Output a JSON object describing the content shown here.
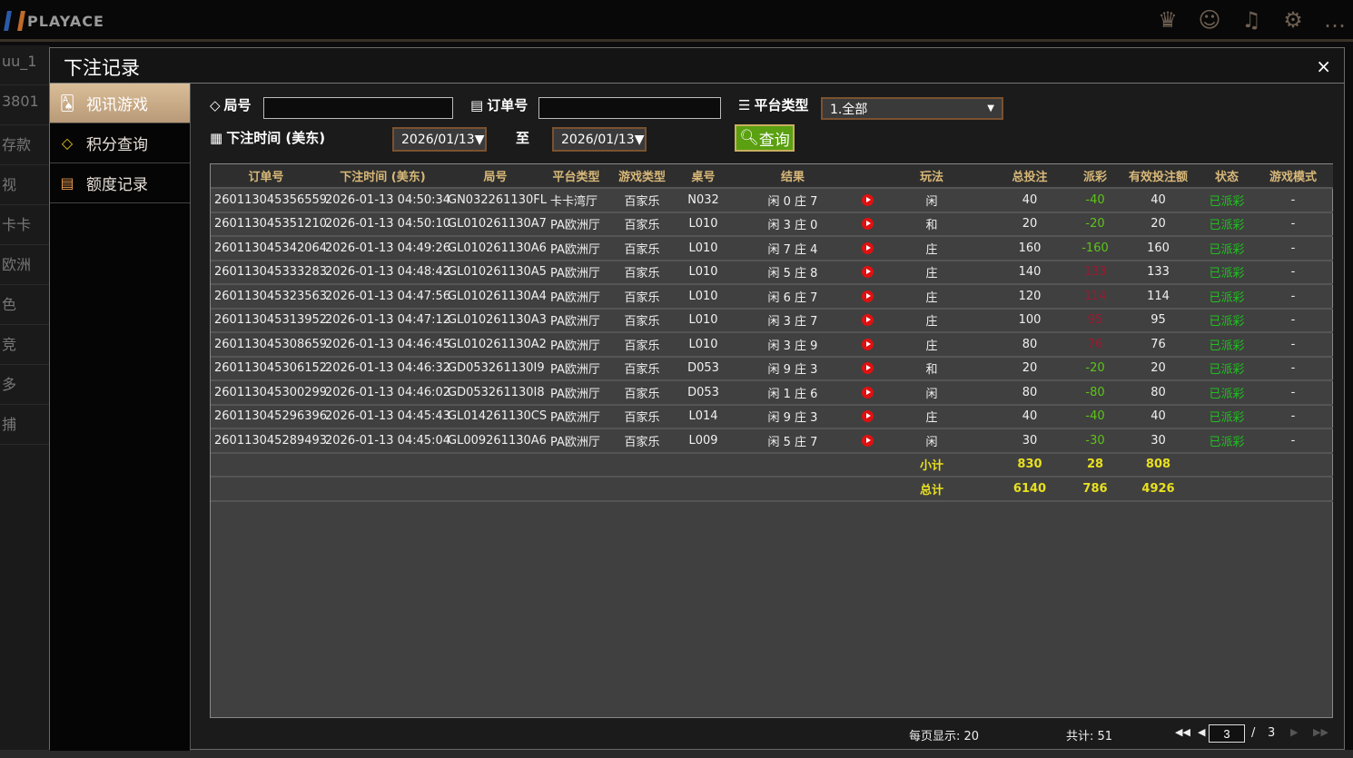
{
  "app": {
    "logo": "PLAYACE",
    "top_icons": [
      "vip-icon",
      "customer-service-icon",
      "music-icon",
      "gear-icon",
      "chat-icon"
    ]
  },
  "background": {
    "left_items": [
      "uu_1",
      "3801",
      "存款",
      "视",
      "卡卡",
      "欧洲",
      "色",
      "竞",
      "多",
      "捕"
    ]
  },
  "modal": {
    "title": "下注记录",
    "close": "×"
  },
  "sidebar": {
    "items": [
      {
        "label": "视讯游戏",
        "icon": "cards-icon",
        "active": true
      },
      {
        "label": "积分查询",
        "icon": "diamond-icon"
      },
      {
        "label": "额度记录",
        "icon": "document-icon"
      }
    ]
  },
  "filters": {
    "round_label": "局号",
    "round_value": "",
    "order_label": "订单号",
    "order_value": "",
    "platform_label": "平台类型",
    "platform_value": "1.全部",
    "time_label": "下注时间 (美东)",
    "date_from": "2026/01/13▼",
    "to_label": "至",
    "date_to": "2026/01/13▼",
    "query_label": "查询"
  },
  "table": {
    "headers": [
      "订单号",
      "下注时间 (美东)",
      "局号",
      "平台类型",
      "游戏类型",
      "桌号",
      "结果",
      "",
      "玩法",
      "总投注",
      "派彩",
      "有效投注额",
      "状态",
      "游戏模式"
    ],
    "rows": [
      [
        "260113045356559",
        "2026-01-13 04:50:34",
        "GN032261130FL",
        "卡卡湾厅",
        "百家乐",
        "N032",
        "闲 0 庄 7",
        "",
        "闲",
        "40",
        "-40",
        "40",
        "已派彩",
        "-"
      ],
      [
        "260113045351210",
        "2026-01-13 04:50:10",
        "GL010261130A7",
        "PA欧洲厅",
        "百家乐",
        "L010",
        "闲 3 庄 0",
        "",
        "和",
        "20",
        "-20",
        "20",
        "已派彩",
        "-"
      ],
      [
        "260113045342064",
        "2026-01-13 04:49:26",
        "GL010261130A6",
        "PA欧洲厅",
        "百家乐",
        "L010",
        "闲 7 庄 4",
        "",
        "庄",
        "160",
        "-160",
        "160",
        "已派彩",
        "-"
      ],
      [
        "260113045333283",
        "2026-01-13 04:48:42",
        "GL010261130A5",
        "PA欧洲厅",
        "百家乐",
        "L010",
        "闲 5 庄 8",
        "",
        "庄",
        "140",
        "133",
        "133",
        "已派彩",
        "-"
      ],
      [
        "260113045323563",
        "2026-01-13 04:47:56",
        "GL010261130A4",
        "PA欧洲厅",
        "百家乐",
        "L010",
        "闲 6 庄 7",
        "",
        "庄",
        "120",
        "114",
        "114",
        "已派彩",
        "-"
      ],
      [
        "260113045313952",
        "2026-01-13 04:47:12",
        "GL010261130A3",
        "PA欧洲厅",
        "百家乐",
        "L010",
        "闲 3 庄 7",
        "",
        "庄",
        "100",
        "95",
        "95",
        "已派彩",
        "-"
      ],
      [
        "260113045308659",
        "2026-01-13 04:46:45",
        "GL010261130A2",
        "PA欧洲厅",
        "百家乐",
        "L010",
        "闲 3 庄 9",
        "",
        "庄",
        "80",
        "76",
        "76",
        "已派彩",
        "-"
      ],
      [
        "260113045306152",
        "2026-01-13 04:46:32",
        "GD053261130I9",
        "PA欧洲厅",
        "百家乐",
        "D053",
        "闲 9 庄 3",
        "",
        "和",
        "20",
        "-20",
        "20",
        "已派彩",
        "-"
      ],
      [
        "260113045300299",
        "2026-01-13 04:46:02",
        "GD053261130I8",
        "PA欧洲厅",
        "百家乐",
        "D053",
        "闲 1 庄 6",
        "",
        "闲",
        "80",
        "-80",
        "80",
        "已派彩",
        "-"
      ],
      [
        "260113045296396",
        "2026-01-13 04:45:43",
        "GL014261130CS",
        "PA欧洲厅",
        "百家乐",
        "L014",
        "闲 9 庄 3",
        "",
        "庄",
        "40",
        "-40",
        "40",
        "已派彩",
        "-"
      ],
      [
        "260113045289493",
        "2026-01-13 04:45:04",
        "GL009261130A6",
        "PA欧洲厅",
        "百家乐",
        "L009",
        "闲 5 庄 7",
        "",
        "闲",
        "30",
        "-30",
        "30",
        "已派彩",
        "-"
      ]
    ],
    "subtotal": {
      "label": "小计",
      "bet": "830",
      "payout": "28",
      "valid": "808"
    },
    "total": {
      "label": "总计",
      "bet": "6140",
      "payout": "786",
      "valid": "4926"
    }
  },
  "pagination": {
    "per_page": "每页显示: 20",
    "total": "共计: 51",
    "current": "3",
    "sep": "/",
    "pages": "3"
  },
  "colors": {
    "header_text": "#d8b878",
    "payout_loss": "#5cc418",
    "payout_win": "#a01830",
    "status": "#20c020",
    "summary": "#e8e020",
    "query_button": "#5aa010"
  }
}
